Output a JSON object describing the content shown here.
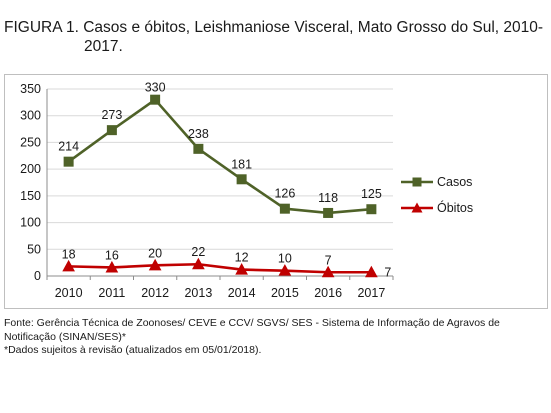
{
  "title": {
    "line1": "FIGURA 1. Casos e óbitos, Leishmaniose Visceral, Mato Grosso do Sul, 2010-",
    "line2": "2017."
  },
  "chart_data": {
    "type": "line",
    "title": "",
    "xlabel": "",
    "ylabel": "",
    "categories": [
      "2010",
      "2011",
      "2012",
      "2013",
      "2014",
      "2015",
      "2016",
      "2017"
    ],
    "ylim": [
      0,
      350
    ],
    "yticks": [
      0,
      50,
      100,
      150,
      200,
      250,
      300,
      350
    ],
    "grid": true,
    "legend_position": "right",
    "series": [
      {
        "name": "Casos",
        "values": [
          214,
          273,
          330,
          238,
          181,
          126,
          118,
          125
        ],
        "color": "#4f6228",
        "marker": "square"
      },
      {
        "name": "Óbitos",
        "values": [
          18,
          16,
          20,
          22,
          12,
          10,
          7,
          7
        ],
        "color": "#c00000",
        "marker": "triangle"
      }
    ]
  },
  "source": {
    "line1": "Fonte: Gerência Técnica de Zoonoses/ CEVE e CCV/ SGVS/ SES - Sistema de Informação de Agravos de",
    "line2": "Notificação (SINAN/SES)*",
    "line3": "*Dados sujeitos à revisão (atualizados em 05/01/2018)."
  }
}
